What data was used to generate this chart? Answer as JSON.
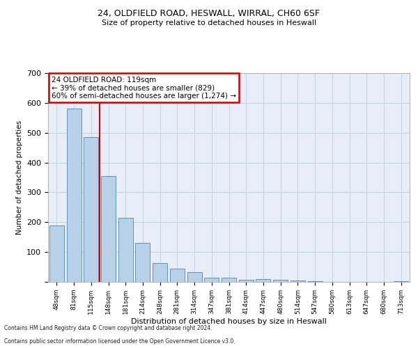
{
  "title1": "24, OLDFIELD ROAD, HESWALL, WIRRAL, CH60 6SF",
  "title2": "Size of property relative to detached houses in Heswall",
  "xlabel": "Distribution of detached houses by size in Heswall",
  "ylabel": "Number of detached properties",
  "categories": [
    "48sqm",
    "81sqm",
    "115sqm",
    "148sqm",
    "181sqm",
    "214sqm",
    "248sqm",
    "281sqm",
    "314sqm",
    "347sqm",
    "381sqm",
    "414sqm",
    "447sqm",
    "480sqm",
    "514sqm",
    "547sqm",
    "580sqm",
    "613sqm",
    "647sqm",
    "680sqm",
    "713sqm"
  ],
  "values": [
    190,
    580,
    485,
    355,
    215,
    130,
    63,
    44,
    32,
    15,
    15,
    8,
    10,
    8,
    5,
    2,
    1,
    1,
    1,
    0,
    2
  ],
  "bar_color": "#b8d0e8",
  "bar_edge_color": "#6090c0",
  "property_line_x": 2.5,
  "annotation_text": "24 OLDFIELD ROAD: 119sqm\n← 39% of detached houses are smaller (829)\n60% of semi-detached houses are larger (1,274) →",
  "annotation_box_color": "#ffffff",
  "annotation_box_edge_color": "#cc0000",
  "property_line_color": "#cc0000",
  "ylim": [
    0,
    700
  ],
  "yticks": [
    0,
    100,
    200,
    300,
    400,
    500,
    600,
    700
  ],
  "grid_color": "#c8d4e4",
  "background_color": "#e8eef8",
  "footer1": "Contains HM Land Registry data © Crown copyright and database right 2024.",
  "footer2": "Contains public sector information licensed under the Open Government Licence v3.0."
}
